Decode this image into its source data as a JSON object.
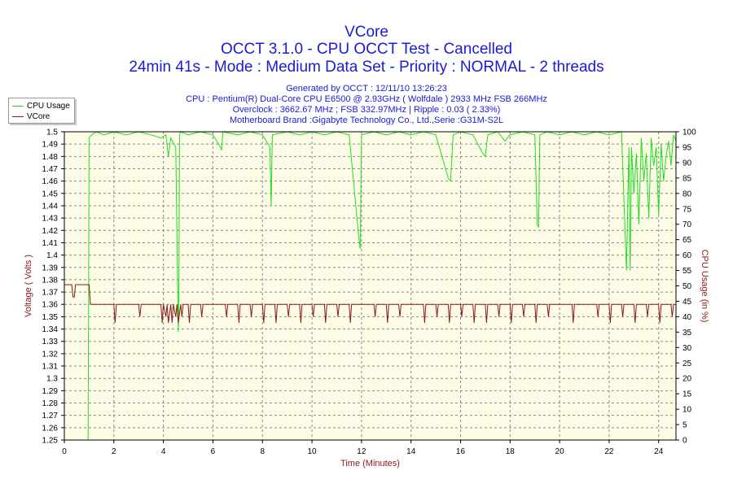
{
  "header": {
    "title": "VCore",
    "subtitle": "OCCT 3.1.0 - CPU OCCT Test - Cancelled",
    "mode_line": "24min 41s - Mode : Medium Data Set - Priority : NORMAL - 2 threads",
    "info_lines": [
      "Generated by OCCT : 12/11/10 13:26:23",
      "CPU : Pentium(R) Dual-Core CPU E6500 @ 2.93GHz ( Wolfdale ) 2933 MHz FSB 266MHz",
      "Overclock : 3662.67 MHz ; FSB 332.97MHz | Ripple : 0.03 ( 2.33%)",
      "Motherboard Brand :Gigabyte Technology Co., Ltd.,Serie :G31M-S2L"
    ]
  },
  "legend": {
    "items": [
      {
        "label": "CPU Usage",
        "color": "#22dd22"
      },
      {
        "label": "VCore",
        "color": "#8b1a1a"
      }
    ],
    "placement": "top-left"
  },
  "chart_data": {
    "type": "line",
    "xlabel": "Time (Minutes)",
    "ylabel_left": "Voltage ( Volts )",
    "ylabel_right": "CPU Usage (in %)",
    "xlim": [
      0,
      24.7
    ],
    "ylim_left": [
      1.25,
      1.5
    ],
    "ylim_right": [
      0,
      100
    ],
    "x_ticks": [
      "0",
      "2",
      "4",
      "6",
      "8",
      "10",
      "12",
      "14",
      "16",
      "18",
      "20",
      "22",
      "24"
    ],
    "y_left_ticks": [
      "1.25",
      "1.26",
      "1.27",
      "1.28",
      "1.29",
      "1.3",
      "1.31",
      "1.32",
      "1.33",
      "1.34",
      "1.35",
      "1.36",
      "1.37",
      "1.38",
      "1.39",
      "1.4",
      "1.41",
      "1.42",
      "1.43",
      "1.44",
      "1.45",
      "1.46",
      "1.47",
      "1.48",
      "1.49",
      "1.5"
    ],
    "y_right_ticks": [
      "0",
      "5",
      "10",
      "15",
      "20",
      "25",
      "30",
      "35",
      "40",
      "45",
      "50",
      "55",
      "60",
      "65",
      "70",
      "75",
      "80",
      "85",
      "90",
      "95",
      "100"
    ],
    "grid": true,
    "colors": {
      "plot_bg": "#fbfbe6",
      "grid": "#8a8a8a",
      "cpu": "#22dd22",
      "vcore": "#8b1a1a",
      "left_axis_text": "#8b1a1a",
      "right_axis_text": "#8b1a1a"
    },
    "series": [
      {
        "name": "CPU Usage",
        "axis": "right",
        "x": [
          0.95,
          0.96,
          1.0,
          1.1,
          1.3,
          1.6,
          2.0,
          2.5,
          3.0,
          3.5,
          3.9,
          4.1,
          4.2,
          4.3,
          4.5,
          4.6,
          4.62,
          4.65,
          4.7,
          5.0,
          5.5,
          6.0,
          6.3,
          6.35,
          6.4,
          7.0,
          7.5,
          8.0,
          8.3,
          8.35,
          8.4,
          9.0,
          9.5,
          10.0,
          10.5,
          11.0,
          11.5,
          11.9,
          11.95,
          12.0,
          12.5,
          13.0,
          13.5,
          14.0,
          14.5,
          15.0,
          15.5,
          15.6,
          15.7,
          16.0,
          16.5,
          16.9,
          17.0,
          17.1,
          17.5,
          17.8,
          17.9,
          18.0,
          18.5,
          19.0,
          19.1,
          19.15,
          19.2,
          19.5,
          20.0,
          20.5,
          21.0,
          21.5,
          22.0,
          22.5,
          22.7,
          22.8,
          22.85,
          22.9,
          23.0,
          23.1,
          23.2,
          23.3,
          23.4,
          23.5,
          23.6,
          23.7,
          23.8,
          23.9,
          24.0,
          24.1,
          24.2,
          24.3,
          24.4,
          24.5,
          24.6,
          24.7
        ],
        "y": [
          0,
          0,
          98,
          99,
          100,
          99,
          100,
          99,
          100,
          99,
          98,
          99,
          92,
          98,
          95,
          35,
          40,
          99,
          100,
          99,
          100,
          99,
          95,
          94,
          100,
          99,
          100,
          99,
          95,
          76,
          99,
          100,
          99,
          100,
          99,
          100,
          99,
          65,
          62,
          99,
          100,
          99,
          100,
          99,
          100,
          99,
          85,
          84,
          99,
          100,
          99,
          93,
          92,
          99,
          100,
          97,
          98,
          99,
          100,
          99,
          70,
          69,
          99,
          100,
          99,
          100,
          99,
          100,
          99,
          100,
          55,
          95,
          55,
          95,
          80,
          93,
          70,
          98,
          84,
          93,
          72,
          98,
          89,
          95,
          73,
          96,
          84,
          92,
          97,
          89,
          99,
          97
        ]
      },
      {
        "name": "VCore",
        "axis": "left",
        "x": [
          0,
          0.3,
          0.35,
          0.4,
          0.45,
          1.0,
          1.05,
          1.1,
          1.5,
          2.0,
          2.05,
          2.1,
          2.5,
          3.0,
          3.05,
          3.1,
          3.5,
          3.9,
          3.95,
          4.0,
          4.1,
          4.15,
          4.2,
          4.3,
          4.35,
          4.4,
          4.5,
          4.55,
          4.6,
          4.7,
          4.75,
          4.8,
          5.0,
          5.05,
          5.1,
          5.5,
          5.55,
          5.6,
          6.0,
          6.5,
          6.55,
          6.6,
          7.0,
          7.05,
          7.1,
          7.5,
          7.55,
          7.6,
          8.0,
          8.05,
          8.1,
          8.5,
          8.55,
          8.6,
          9.0,
          9.05,
          9.1,
          9.5,
          9.55,
          9.6,
          10.0,
          10.05,
          10.1,
          10.5,
          10.55,
          10.6,
          11.0,
          11.05,
          11.1,
          11.5,
          11.55,
          11.6,
          12.0,
          12.5,
          12.55,
          12.6,
          13.0,
          13.05,
          13.1,
          13.5,
          13.55,
          13.6,
          14.0,
          14.5,
          14.55,
          14.6,
          15.0,
          15.05,
          15.1,
          15.5,
          15.55,
          15.6,
          16.0,
          16.05,
          16.1,
          16.5,
          16.55,
          16.6,
          17.0,
          17.05,
          17.1,
          17.5,
          17.55,
          17.6,
          18.0,
          18.05,
          18.1,
          18.5,
          18.55,
          18.6,
          19.0,
          19.05,
          19.1,
          19.5,
          19.55,
          19.6,
          20.0,
          20.5,
          20.55,
          20.6,
          21.0,
          21.5,
          21.55,
          21.6,
          22.0,
          22.05,
          22.1,
          22.5,
          22.55,
          22.6,
          23.0,
          23.05,
          23.1,
          23.5,
          23.55,
          23.6,
          24.0,
          24.05,
          24.1,
          24.5,
          24.55,
          24.6,
          24.7
        ],
        "y": [
          1.376,
          1.376,
          1.366,
          1.366,
          1.376,
          1.376,
          1.361,
          1.36,
          1.36,
          1.36,
          1.345,
          1.36,
          1.36,
          1.36,
          1.35,
          1.36,
          1.36,
          1.36,
          1.345,
          1.36,
          1.35,
          1.36,
          1.345,
          1.36,
          1.345,
          1.36,
          1.35,
          1.36,
          1.345,
          1.36,
          1.35,
          1.36,
          1.36,
          1.345,
          1.36,
          1.36,
          1.35,
          1.36,
          1.36,
          1.36,
          1.35,
          1.36,
          1.36,
          1.345,
          1.36,
          1.36,
          1.35,
          1.36,
          1.36,
          1.345,
          1.36,
          1.36,
          1.345,
          1.36,
          1.36,
          1.35,
          1.36,
          1.36,
          1.345,
          1.36,
          1.36,
          1.35,
          1.36,
          1.36,
          1.345,
          1.36,
          1.36,
          1.35,
          1.36,
          1.36,
          1.345,
          1.36,
          1.36,
          1.36,
          1.35,
          1.36,
          1.36,
          1.345,
          1.36,
          1.36,
          1.35,
          1.36,
          1.36,
          1.36,
          1.345,
          1.36,
          1.36,
          1.35,
          1.36,
          1.36,
          1.345,
          1.36,
          1.36,
          1.35,
          1.36,
          1.36,
          1.345,
          1.36,
          1.36,
          1.345,
          1.36,
          1.36,
          1.35,
          1.36,
          1.36,
          1.345,
          1.36,
          1.36,
          1.35,
          1.36,
          1.36,
          1.345,
          1.36,
          1.36,
          1.35,
          1.36,
          1.36,
          1.36,
          1.345,
          1.36,
          1.36,
          1.36,
          1.35,
          1.36,
          1.36,
          1.345,
          1.36,
          1.36,
          1.35,
          1.36,
          1.36,
          1.345,
          1.36,
          1.36,
          1.35,
          1.36,
          1.36,
          1.345,
          1.36,
          1.36,
          1.35,
          1.36,
          1.36
        ]
      }
    ]
  }
}
